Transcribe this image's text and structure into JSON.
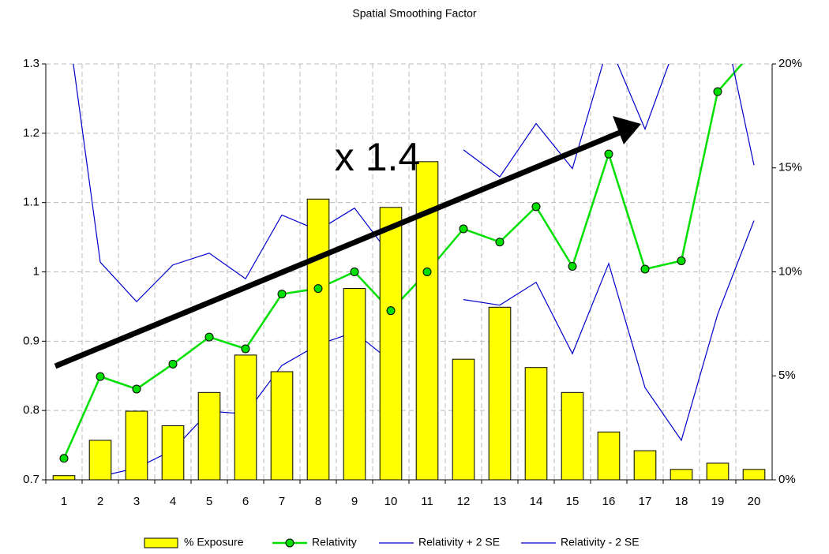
{
  "chart_data": {
    "type": "combo",
    "title": "Spatial Smoothing Factor",
    "annotation": "x 1.4",
    "categories": [
      "1",
      "2",
      "3",
      "4",
      "5",
      "6",
      "7",
      "8",
      "9",
      "10",
      "11",
      "12",
      "13",
      "14",
      "15",
      "16",
      "17",
      "18",
      "19",
      "20"
    ],
    "ylim": [
      0.7,
      1.3
    ],
    "yticks": [
      0.7,
      0.8,
      0.9,
      1,
      1.1,
      1.2,
      1.3
    ],
    "y2lim": [
      0,
      20
    ],
    "y2ticks": [
      {
        "value": 0,
        "label": "0%"
      },
      {
        "value": 5,
        "label": "5%"
      },
      {
        "value": 10,
        "label": "10%"
      },
      {
        "value": 15,
        "label": "15%"
      },
      {
        "value": 20,
        "label": "20%"
      }
    ],
    "grid": true,
    "legend": "bottom",
    "series": [
      {
        "name": "% Exposure",
        "kind": "bar",
        "axis": "y2",
        "color": "#ffff00",
        "values": [
          0.2,
          1.9,
          3.3,
          2.6,
          4.2,
          6.0,
          5.2,
          13.5,
          9.2,
          13.1,
          15.3,
          5.8,
          8.3,
          5.4,
          4.2,
          2.3,
          1.4,
          0.5,
          0.8,
          0.5
        ]
      },
      {
        "name": "Relativity",
        "kind": "line",
        "markers": true,
        "color": "#00e000",
        "values": [
          0.731,
          0.849,
          0.831,
          0.867,
          0.906,
          0.889,
          0.968,
          0.976,
          1.0,
          0.944,
          1.0,
          1.062,
          1.043,
          1.094,
          1.008,
          1.17,
          1.004,
          1.016,
          1.26,
          1.32
        ]
      },
      {
        "name": "Relativity + 2 SE",
        "kind": "line",
        "color": "#0000cc",
        "values": [
          1.4,
          1.014,
          0.957,
          1.01,
          1.027,
          0.99,
          1.082,
          1.06,
          1.092,
          1.023,
          null,
          1.176,
          1.137,
          1.214,
          1.149,
          1.33,
          1.206,
          1.35,
          1.4,
          1.154
        ]
      },
      {
        "name": "Relativity - 2 SE",
        "kind": "line",
        "color": "#0000cc",
        "values": [
          null,
          0.705,
          0.717,
          0.743,
          0.799,
          0.795,
          0.865,
          0.895,
          0.913,
          0.871,
          null,
          0.96,
          0.952,
          0.985,
          0.882,
          1.012,
          0.833,
          0.757,
          0.939,
          1.074
        ]
      }
    ]
  }
}
